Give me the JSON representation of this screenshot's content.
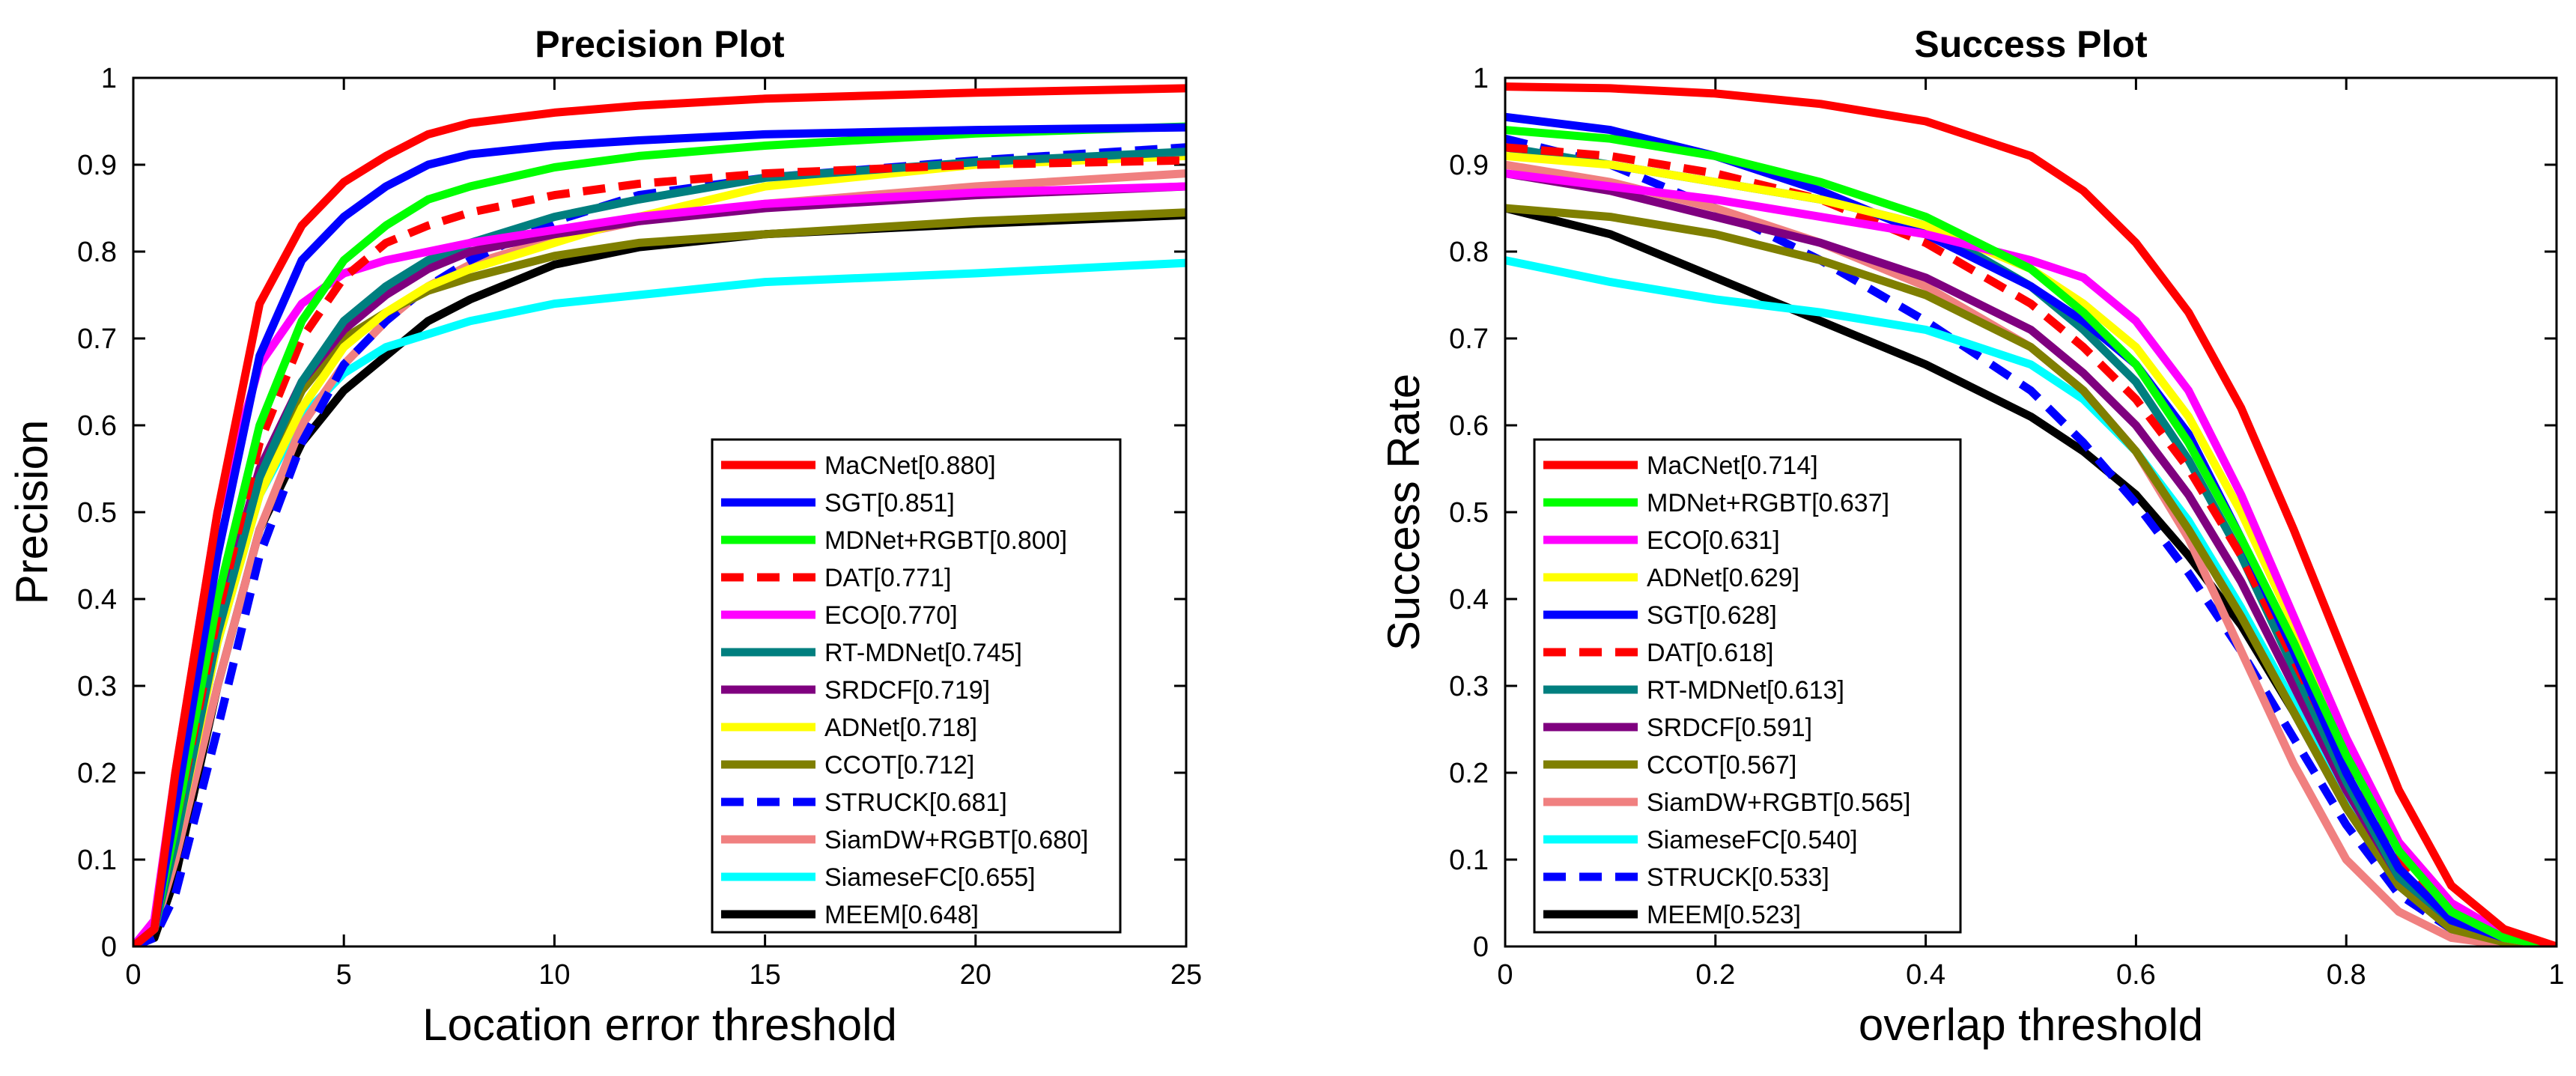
{
  "chart_data": [
    {
      "type": "line",
      "title": "Precision Plot",
      "xlabel": "Location error threshold",
      "ylabel": "Precision",
      "xlim": [
        0,
        25
      ],
      "ylim": [
        0,
        1
      ],
      "xticks": [
        "0",
        "5",
        "10",
        "15",
        "20",
        "25"
      ],
      "yticks": [
        "0",
        "0.1",
        "0.2",
        "0.3",
        "0.4",
        "0.5",
        "0.6",
        "0.7",
        "0.8",
        "0.9",
        "1"
      ],
      "legend_position": "bottom-right",
      "series": [
        {
          "name": "MaCNet[0.880]",
          "color": "#ff0000",
          "dashed": false,
          "x": [
            0,
            0.5,
            1,
            2,
            3,
            4,
            5,
            6,
            7,
            8,
            10,
            12,
            15,
            20,
            25
          ],
          "y": [
            0,
            0.02,
            0.2,
            0.5,
            0.74,
            0.83,
            0.88,
            0.91,
            0.935,
            0.948,
            0.96,
            0.968,
            0.976,
            0.983,
            0.988
          ]
        },
        {
          "name": "SGT[0.851]",
          "color": "#0000ff",
          "dashed": false,
          "x": [
            0,
            0.5,
            1,
            2,
            3,
            4,
            5,
            6,
            7,
            8,
            10,
            12,
            15,
            20,
            25
          ],
          "y": [
            0,
            0.02,
            0.16,
            0.45,
            0.68,
            0.79,
            0.84,
            0.875,
            0.9,
            0.912,
            0.922,
            0.928,
            0.935,
            0.94,
            0.943
          ]
        },
        {
          "name": "MDNet+RGBT[0.800]",
          "color": "#00ff00",
          "dashed": false,
          "x": [
            0,
            0.5,
            1,
            2,
            3,
            4,
            5,
            6,
            7,
            8,
            10,
            12,
            15,
            20,
            25
          ],
          "y": [
            0,
            0.02,
            0.14,
            0.4,
            0.6,
            0.72,
            0.79,
            0.83,
            0.86,
            0.875,
            0.897,
            0.91,
            0.922,
            0.936,
            0.944
          ]
        },
        {
          "name": "DAT[0.771]",
          "color": "#ff0000",
          "dashed": true,
          "x": [
            0,
            0.5,
            1,
            2,
            3,
            4,
            5,
            6,
            7,
            8,
            10,
            12,
            15,
            20,
            25
          ],
          "y": [
            0,
            0.02,
            0.14,
            0.38,
            0.58,
            0.7,
            0.77,
            0.81,
            0.83,
            0.845,
            0.865,
            0.878,
            0.89,
            0.9,
            0.905
          ]
        },
        {
          "name": "ECO[0.770]",
          "color": "#ff00ff",
          "dashed": false,
          "x": [
            0,
            0.5,
            1,
            2,
            3,
            4,
            5,
            6,
            7,
            8,
            10,
            12,
            15,
            20,
            25
          ],
          "y": [
            0,
            0.03,
            0.2,
            0.5,
            0.67,
            0.74,
            0.775,
            0.79,
            0.8,
            0.81,
            0.825,
            0.84,
            0.855,
            0.868,
            0.875
          ]
        },
        {
          "name": "RT-MDNet[0.745]",
          "color": "#007f7f",
          "dashed": false,
          "x": [
            0,
            0.5,
            1,
            2,
            3,
            4,
            5,
            6,
            7,
            8,
            10,
            12,
            15,
            20,
            25
          ],
          "y": [
            0,
            0.02,
            0.12,
            0.36,
            0.54,
            0.65,
            0.72,
            0.76,
            0.79,
            0.81,
            0.84,
            0.86,
            0.885,
            0.903,
            0.915
          ]
        },
        {
          "name": "SRDCF[0.719]",
          "color": "#7f007f",
          "dashed": false,
          "x": [
            0,
            0.5,
            1,
            2,
            3,
            4,
            5,
            6,
            7,
            8,
            10,
            12,
            15,
            20,
            25
          ],
          "y": [
            0,
            0.02,
            0.13,
            0.38,
            0.55,
            0.65,
            0.71,
            0.75,
            0.78,
            0.8,
            0.82,
            0.835,
            0.85,
            0.865,
            0.875
          ]
        },
        {
          "name": "ADNet[0.718]",
          "color": "#ffff00",
          "dashed": false,
          "x": [
            0,
            0.5,
            1,
            2,
            3,
            4,
            5,
            6,
            7,
            8,
            10,
            12,
            15,
            20,
            25
          ],
          "y": [
            0,
            0.02,
            0.12,
            0.35,
            0.52,
            0.62,
            0.69,
            0.73,
            0.76,
            0.78,
            0.81,
            0.84,
            0.875,
            0.9,
            0.91
          ]
        },
        {
          "name": "CCOT[0.712]",
          "color": "#7f7f00",
          "dashed": false,
          "x": [
            0,
            0.5,
            1,
            2,
            3,
            4,
            5,
            6,
            7,
            8,
            10,
            12,
            15,
            20,
            25
          ],
          "y": [
            0,
            0.02,
            0.13,
            0.37,
            0.54,
            0.64,
            0.7,
            0.73,
            0.755,
            0.77,
            0.795,
            0.81,
            0.82,
            0.835,
            0.845
          ]
        },
        {
          "name": "STRUCK[0.681]",
          "color": "#0000ff",
          "dashed": true,
          "x": [
            0,
            0.5,
            1,
            2,
            3,
            4,
            5,
            6,
            7,
            8,
            10,
            12,
            15,
            20,
            25
          ],
          "y": [
            0,
            0.01,
            0.06,
            0.25,
            0.45,
            0.58,
            0.67,
            0.72,
            0.76,
            0.79,
            0.835,
            0.865,
            0.885,
            0.905,
            0.92
          ]
        },
        {
          "name": "SiamDW+RGBT[0.680]",
          "color": "#f08080",
          "dashed": false,
          "x": [
            0,
            0.5,
            1,
            2,
            3,
            4,
            5,
            6,
            7,
            8,
            10,
            12,
            15,
            20,
            25
          ],
          "y": [
            0,
            0.02,
            0.1,
            0.3,
            0.48,
            0.6,
            0.67,
            0.72,
            0.76,
            0.785,
            0.815,
            0.835,
            0.855,
            0.875,
            0.89
          ]
        },
        {
          "name": "SiameseFC[0.655]",
          "color": "#00ffff",
          "dashed": false,
          "x": [
            0,
            0.5,
            1,
            2,
            3,
            4,
            5,
            6,
            7,
            8,
            10,
            12,
            15,
            20,
            25
          ],
          "y": [
            0,
            0.02,
            0.12,
            0.35,
            0.52,
            0.61,
            0.66,
            0.69,
            0.705,
            0.72,
            0.74,
            0.75,
            0.765,
            0.775,
            0.787
          ]
        },
        {
          "name": "MEEM[0.648]",
          "color": "#000000",
          "dashed": false,
          "x": [
            0,
            0.5,
            1,
            2,
            3,
            4,
            5,
            6,
            7,
            8,
            10,
            12,
            15,
            20,
            25
          ],
          "y": [
            0,
            0.01,
            0.08,
            0.3,
            0.48,
            0.58,
            0.64,
            0.68,
            0.72,
            0.745,
            0.785,
            0.805,
            0.82,
            0.832,
            0.842
          ]
        }
      ]
    },
    {
      "type": "line",
      "title": "Success Plot",
      "xlabel": "overlap threshold",
      "ylabel": "Success Rate",
      "xlim": [
        0,
        1
      ],
      "ylim": [
        0,
        1
      ],
      "xticks": [
        "0",
        "0.2",
        "0.4",
        "0.6",
        "0.8",
        "1"
      ],
      "yticks": [
        "0",
        "0.1",
        "0.2",
        "0.3",
        "0.4",
        "0.5",
        "0.6",
        "0.7",
        "0.8",
        "0.9",
        "1"
      ],
      "legend_position": "bottom-left",
      "series": [
        {
          "name": "MaCNet[0.714]",
          "color": "#ff0000",
          "dashed": false,
          "x": [
            0,
            0.1,
            0.2,
            0.3,
            0.4,
            0.5,
            0.55,
            0.6,
            0.65,
            0.7,
            0.75,
            0.8,
            0.85,
            0.9,
            0.95,
            1
          ],
          "y": [
            0.99,
            0.988,
            0.982,
            0.97,
            0.95,
            0.91,
            0.87,
            0.81,
            0.73,
            0.62,
            0.48,
            0.33,
            0.18,
            0.07,
            0.02,
            0.0
          ]
        },
        {
          "name": "MDNet+RGBT[0.637]",
          "color": "#00ff00",
          "dashed": false,
          "x": [
            0,
            0.1,
            0.2,
            0.3,
            0.4,
            0.5,
            0.55,
            0.6,
            0.65,
            0.7,
            0.75,
            0.8,
            0.85,
            0.9,
            0.95,
            1
          ],
          "y": [
            0.94,
            0.93,
            0.91,
            0.88,
            0.84,
            0.78,
            0.73,
            0.67,
            0.58,
            0.47,
            0.35,
            0.22,
            0.11,
            0.04,
            0.01,
            0.0
          ]
        },
        {
          "name": "ECO[0.631]",
          "color": "#ff00ff",
          "dashed": false,
          "x": [
            0,
            0.1,
            0.2,
            0.3,
            0.4,
            0.5,
            0.55,
            0.6,
            0.65,
            0.7,
            0.75,
            0.8,
            0.85,
            0.9,
            0.95,
            1
          ],
          "y": [
            0.89,
            0.875,
            0.86,
            0.84,
            0.82,
            0.79,
            0.77,
            0.72,
            0.64,
            0.52,
            0.38,
            0.24,
            0.12,
            0.05,
            0.015,
            0.0
          ]
        },
        {
          "name": "ADNet[0.629]",
          "color": "#ffff00",
          "dashed": false,
          "x": [
            0,
            0.1,
            0.2,
            0.3,
            0.4,
            0.5,
            0.55,
            0.6,
            0.65,
            0.7,
            0.75,
            0.8,
            0.85,
            0.9,
            0.95,
            1
          ],
          "y": [
            0.91,
            0.9,
            0.88,
            0.86,
            0.83,
            0.78,
            0.74,
            0.69,
            0.61,
            0.5,
            0.37,
            0.23,
            0.11,
            0.04,
            0.01,
            0.0
          ]
        },
        {
          "name": "SGT[0.628]",
          "color": "#0000ff",
          "dashed": false,
          "x": [
            0,
            0.1,
            0.2,
            0.3,
            0.4,
            0.5,
            0.55,
            0.6,
            0.65,
            0.7,
            0.75,
            0.8,
            0.85,
            0.9,
            0.95,
            1
          ],
          "y": [
            0.955,
            0.94,
            0.91,
            0.87,
            0.82,
            0.76,
            0.72,
            0.67,
            0.59,
            0.47,
            0.34,
            0.2,
            0.09,
            0.03,
            0.01,
            0.0
          ]
        },
        {
          "name": "DAT[0.618]",
          "color": "#ff0000",
          "dashed": true,
          "x": [
            0,
            0.1,
            0.2,
            0.3,
            0.4,
            0.5,
            0.55,
            0.6,
            0.65,
            0.7,
            0.75,
            0.8,
            0.85,
            0.9,
            0.95,
            1
          ],
          "y": [
            0.92,
            0.91,
            0.89,
            0.86,
            0.81,
            0.74,
            0.69,
            0.63,
            0.55,
            0.45,
            0.33,
            0.21,
            0.1,
            0.04,
            0.01,
            0.0
          ]
        },
        {
          "name": "RT-MDNet[0.613]",
          "color": "#007f7f",
          "dashed": false,
          "x": [
            0,
            0.1,
            0.2,
            0.3,
            0.4,
            0.5,
            0.55,
            0.6,
            0.65,
            0.7,
            0.75,
            0.8,
            0.85,
            0.9,
            0.95,
            1
          ],
          "y": [
            0.92,
            0.9,
            0.88,
            0.86,
            0.83,
            0.76,
            0.71,
            0.65,
            0.56,
            0.45,
            0.32,
            0.19,
            0.08,
            0.03,
            0.01,
            0.0
          ]
        },
        {
          "name": "SRDCF[0.591]",
          "color": "#7f007f",
          "dashed": false,
          "x": [
            0,
            0.1,
            0.2,
            0.3,
            0.4,
            0.5,
            0.55,
            0.6,
            0.65,
            0.7,
            0.75,
            0.8,
            0.85,
            0.9,
            0.95,
            1
          ],
          "y": [
            0.89,
            0.87,
            0.84,
            0.81,
            0.77,
            0.71,
            0.66,
            0.6,
            0.52,
            0.42,
            0.3,
            0.18,
            0.08,
            0.03,
            0.01,
            0.0
          ]
        },
        {
          "name": "CCOT[0.567]",
          "color": "#7f7f00",
          "dashed": false,
          "x": [
            0,
            0.1,
            0.2,
            0.3,
            0.4,
            0.5,
            0.55,
            0.6,
            0.65,
            0.7,
            0.75,
            0.8,
            0.85,
            0.9,
            0.95,
            1
          ],
          "y": [
            0.85,
            0.84,
            0.82,
            0.79,
            0.75,
            0.69,
            0.64,
            0.57,
            0.48,
            0.38,
            0.27,
            0.16,
            0.07,
            0.02,
            0.005,
            0.0
          ]
        },
        {
          "name": "SiamDW+RGBT[0.565]",
          "color": "#f08080",
          "dashed": false,
          "x": [
            0,
            0.1,
            0.2,
            0.3,
            0.4,
            0.5,
            0.55,
            0.6,
            0.65,
            0.7,
            0.75,
            0.8,
            0.85,
            0.9,
            0.95,
            1
          ],
          "y": [
            0.9,
            0.88,
            0.85,
            0.81,
            0.76,
            0.69,
            0.64,
            0.57,
            0.47,
            0.34,
            0.21,
            0.1,
            0.04,
            0.01,
            0.002,
            0.0
          ]
        },
        {
          "name": "SiameseFC[0.540]",
          "color": "#00ffff",
          "dashed": false,
          "x": [
            0,
            0.1,
            0.2,
            0.3,
            0.4,
            0.5,
            0.55,
            0.6,
            0.65,
            0.7,
            0.75,
            0.8,
            0.85,
            0.9,
            0.95,
            1
          ],
          "y": [
            0.79,
            0.765,
            0.745,
            0.73,
            0.71,
            0.67,
            0.63,
            0.57,
            0.49,
            0.39,
            0.28,
            0.17,
            0.08,
            0.03,
            0.01,
            0.0
          ]
        },
        {
          "name": "STRUCK[0.533]",
          "color": "#0000ff",
          "dashed": true,
          "x": [
            0,
            0.1,
            0.2,
            0.3,
            0.4,
            0.5,
            0.55,
            0.6,
            0.65,
            0.7,
            0.75,
            0.8,
            0.85,
            0.9,
            0.95,
            1
          ],
          "y": [
            0.93,
            0.9,
            0.85,
            0.79,
            0.72,
            0.64,
            0.58,
            0.51,
            0.43,
            0.34,
            0.24,
            0.14,
            0.06,
            0.02,
            0.005,
            0.0
          ]
        },
        {
          "name": "MEEM[0.523]",
          "color": "#000000",
          "dashed": false,
          "x": [
            0,
            0.1,
            0.2,
            0.3,
            0.4,
            0.5,
            0.55,
            0.6,
            0.65,
            0.7,
            0.75,
            0.8,
            0.85,
            0.9,
            0.95,
            1
          ],
          "y": [
            0.85,
            0.82,
            0.77,
            0.72,
            0.67,
            0.61,
            0.57,
            0.52,
            0.45,
            0.37,
            0.27,
            0.16,
            0.07,
            0.02,
            0.005,
            0.0
          ]
        }
      ]
    }
  ]
}
